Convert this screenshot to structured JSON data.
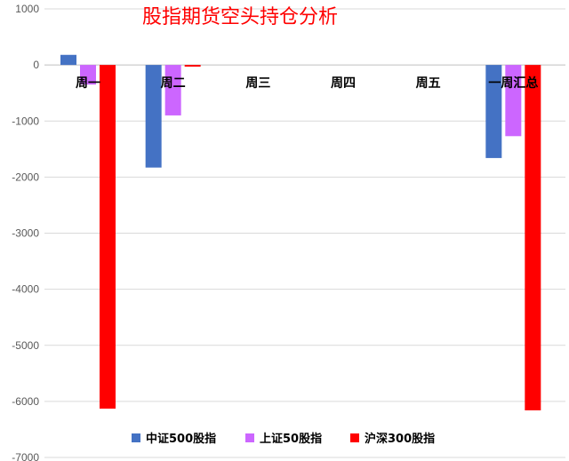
{
  "chart_data": {
    "type": "bar",
    "title": "股指期货空头持仓分析",
    "categories": [
      "周一",
      "周二",
      "周三",
      "周四",
      "周五",
      "一周汇总"
    ],
    "series": [
      {
        "name": "中证500股指",
        "color": "#4472c4",
        "values": [
          180,
          -1830,
          0,
          0,
          0,
          -1660
        ]
      },
      {
        "name": "上证50股指",
        "color": "#cc66ff",
        "values": [
          -350,
          -900,
          0,
          0,
          0,
          -1270
        ]
      },
      {
        "name": "沪深300股指",
        "color": "#ff0000",
        "values": [
          -6130,
          -30,
          0,
          0,
          0,
          -6160
        ]
      }
    ],
    "ylim": [
      -7000,
      1000
    ],
    "yticks": [
      1000,
      0,
      -1000,
      -2000,
      -3000,
      -4000,
      -5000,
      -6000,
      -7000
    ],
    "ytick_labels": [
      "1000",
      "0",
      "-1000",
      "-2000",
      "-3000",
      "-4000",
      "-5000",
      "-6000",
      "-7000"
    ],
    "grid": true,
    "legend_position": "bottom"
  }
}
